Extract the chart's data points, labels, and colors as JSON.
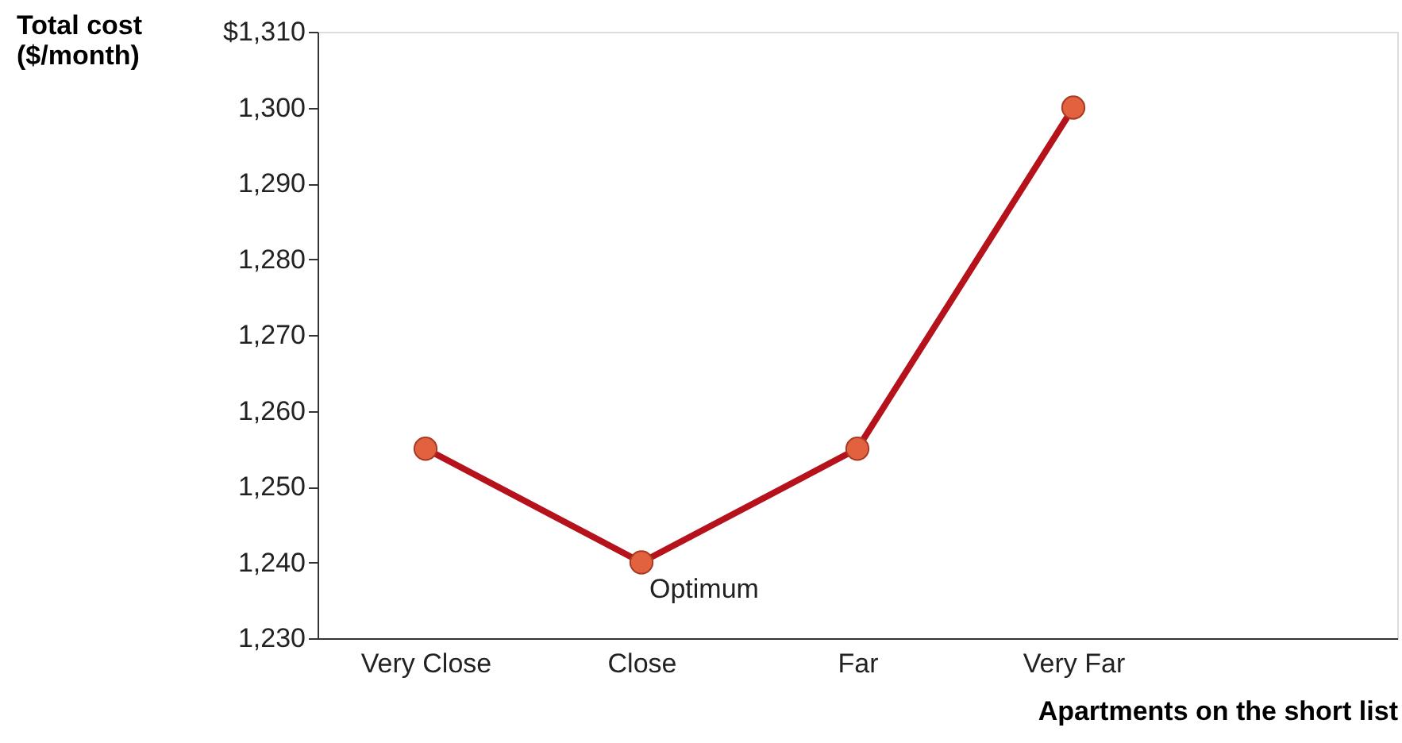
{
  "chart_data": {
    "type": "line",
    "ylabel": "Total cost\n($/month)",
    "xlabel": "Apartments on the short list",
    "categories": [
      "Very Close",
      "Close",
      "Far",
      "Very Far"
    ],
    "series": [
      {
        "color": "#b5121b",
        "values": [
          1255,
          1240,
          1255,
          1300
        ]
      }
    ],
    "ylim": [
      1230,
      1310
    ],
    "yticks": [
      {
        "value": 1230,
        "label": "1,230"
      },
      {
        "value": 1240,
        "label": "1,240"
      },
      {
        "value": 1250,
        "label": "1,250"
      },
      {
        "value": 1260,
        "label": "1,260"
      },
      {
        "value": 1270,
        "label": "1,270"
      },
      {
        "value": 1280,
        "label": "1,280"
      },
      {
        "value": 1290,
        "label": "1,290"
      },
      {
        "value": 1300,
        "label": "1,300"
      },
      {
        "value": 1310,
        "label": "$1,310"
      }
    ],
    "annotations": [
      {
        "text": "Optimum",
        "x": "Close",
        "y": 1240
      }
    ],
    "marker": "circle",
    "line_style": "solid",
    "grid": false
  }
}
